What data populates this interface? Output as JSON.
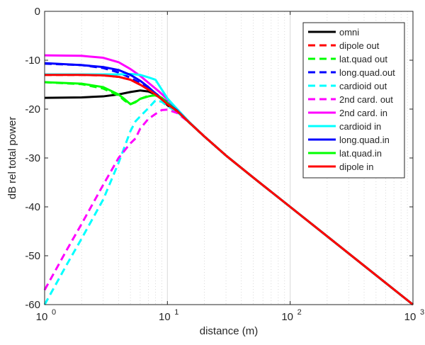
{
  "chart_data": {
    "type": "line",
    "title": "",
    "xlabel": "distance (m)",
    "ylabel": "dB rel total power",
    "xscale": "log",
    "xlim": [
      1,
      1000
    ],
    "ylim": [
      -60,
      0
    ],
    "grid": "x-major-minor",
    "legend_position": "top-right",
    "xticks": [
      {
        "value": 1,
        "base": "10",
        "exp": "0"
      },
      {
        "value": 10,
        "base": "10",
        "exp": "1"
      },
      {
        "value": 100,
        "base": "10",
        "exp": "2"
      },
      {
        "value": 1000,
        "base": "10",
        "exp": "3"
      }
    ],
    "yticks": [
      {
        "value": 0,
        "label": "0"
      },
      {
        "value": -10,
        "label": "-10"
      },
      {
        "value": -20,
        "label": "-20"
      },
      {
        "value": -30,
        "label": "-30"
      },
      {
        "value": -40,
        "label": "-40"
      },
      {
        "value": -50,
        "label": "-50"
      },
      {
        "value": -60,
        "label": "-60"
      }
    ],
    "series": [
      {
        "name": "omni",
        "color": "#000000",
        "dashed": false,
        "points": [
          [
            1,
            -17.7
          ],
          [
            2,
            -17.6
          ],
          [
            3,
            -17.4
          ],
          [
            4,
            -17.0
          ],
          [
            5,
            -16.5
          ],
          [
            6,
            -16.2
          ],
          [
            7,
            -16.4
          ],
          [
            8,
            -17.0
          ],
          [
            9,
            -18.0
          ],
          [
            10,
            -19.2
          ],
          [
            12,
            -20.5
          ],
          [
            15,
            -22.7
          ],
          [
            20,
            -25.6
          ],
          [
            30,
            -29.5
          ],
          [
            50,
            -34.0
          ],
          [
            100,
            -40.0
          ],
          [
            200,
            -46.0
          ],
          [
            500,
            -54.0
          ],
          [
            1000,
            -60.0
          ]
        ]
      },
      {
        "name": "dipole out",
        "color": "#ff0000",
        "dashed": true,
        "points": [
          [
            1,
            -13.0
          ],
          [
            2,
            -13.0
          ],
          [
            3,
            -13.1
          ],
          [
            4,
            -13.4
          ],
          [
            5,
            -14.0
          ],
          [
            6,
            -15.0
          ],
          [
            7,
            -16.0
          ],
          [
            8,
            -17.0
          ],
          [
            9,
            -18.0
          ],
          [
            10,
            -19.0
          ],
          [
            12,
            -20.4
          ],
          [
            15,
            -22.7
          ],
          [
            20,
            -25.6
          ],
          [
            30,
            -29.5
          ],
          [
            50,
            -34.0
          ],
          [
            100,
            -40.0
          ],
          [
            200,
            -46.0
          ],
          [
            500,
            -54.0
          ],
          [
            1000,
            -60.0
          ]
        ]
      },
      {
        "name": "lat.quad out",
        "color": "#00ff00",
        "dashed": true,
        "points": [
          [
            1,
            -14.5
          ],
          [
            2,
            -14.9
          ],
          [
            3,
            -15.8
          ],
          [
            4,
            -17.2
          ],
          [
            4.5,
            -18.3
          ],
          [
            5,
            -19.0
          ],
          [
            5.5,
            -18.5
          ],
          [
            6,
            -17.9
          ],
          [
            7,
            -17.3
          ],
          [
            8,
            -17.2
          ],
          [
            9,
            -17.8
          ],
          [
            10,
            -18.8
          ],
          [
            12,
            -20.4
          ],
          [
            15,
            -22.7
          ],
          [
            20,
            -25.6
          ],
          [
            30,
            -29.5
          ],
          [
            50,
            -34.0
          ],
          [
            100,
            -40.0
          ],
          [
            1000,
            -60.0
          ]
        ]
      },
      {
        "name": "long.quad.out",
        "color": "#0000ff",
        "dashed": true,
        "points": [
          [
            1,
            -10.7
          ],
          [
            2,
            -11.0
          ],
          [
            3,
            -11.6
          ],
          [
            4,
            -12.5
          ],
          [
            5,
            -13.6
          ],
          [
            6,
            -14.7
          ],
          [
            7,
            -15.8
          ],
          [
            8,
            -16.8
          ],
          [
            9,
            -17.7
          ],
          [
            10,
            -18.6
          ],
          [
            12,
            -20.3
          ],
          [
            15,
            -22.7
          ],
          [
            20,
            -25.6
          ],
          [
            30,
            -29.5
          ],
          [
            50,
            -34.0
          ],
          [
            100,
            -40.0
          ],
          [
            1000,
            -60.0
          ]
        ]
      },
      {
        "name": "cardioid out",
        "color": "#00ffff",
        "dashed": true,
        "points": [
          [
            1,
            -60.0
          ],
          [
            1.5,
            -52.0
          ],
          [
            2,
            -46.5
          ],
          [
            3,
            -38.5
          ],
          [
            4,
            -31.0
          ],
          [
            5,
            -24.5
          ],
          [
            5.5,
            -22.5
          ],
          [
            6,
            -21.5
          ],
          [
            7,
            -19.8
          ],
          [
            8,
            -18.2
          ],
          [
            9,
            -18.5
          ],
          [
            10,
            -19.4
          ],
          [
            12,
            -20.6
          ],
          [
            15,
            -22.7
          ],
          [
            20,
            -25.6
          ],
          [
            30,
            -29.5
          ],
          [
            50,
            -34.0
          ],
          [
            100,
            -40.0
          ],
          [
            1000,
            -60.0
          ]
        ]
      },
      {
        "name": "2nd card. out",
        "color": "#ff00ff",
        "dashed": true,
        "points": [
          [
            1,
            -57.0
          ],
          [
            1.5,
            -49.0
          ],
          [
            2,
            -43.5
          ],
          [
            3,
            -35.5
          ],
          [
            4,
            -30.0
          ],
          [
            5,
            -27.0
          ],
          [
            5.5,
            -26.0
          ],
          [
            6,
            -24.0
          ],
          [
            7,
            -22.0
          ],
          [
            8,
            -21.0
          ],
          [
            9,
            -20.2
          ],
          [
            10,
            -20.1
          ],
          [
            12,
            -20.8
          ],
          [
            15,
            -22.7
          ],
          [
            20,
            -25.6
          ],
          [
            30,
            -29.5
          ],
          [
            50,
            -34.0
          ],
          [
            100,
            -40.0
          ],
          [
            1000,
            -60.0
          ]
        ]
      },
      {
        "name": "2nd card. in",
        "color": "#ff00ff",
        "dashed": false,
        "points": [
          [
            1,
            -9.0
          ],
          [
            2,
            -9.1
          ],
          [
            3,
            -9.5
          ],
          [
            4,
            -10.4
          ],
          [
            5,
            -11.8
          ],
          [
            6,
            -13.2
          ],
          [
            7,
            -14.6
          ],
          [
            8,
            -15.8
          ],
          [
            9,
            -16.9
          ],
          [
            10,
            -18.0
          ],
          [
            12,
            -20.0
          ],
          [
            15,
            -22.6
          ],
          [
            20,
            -25.6
          ],
          [
            30,
            -29.5
          ],
          [
            50,
            -34.0
          ],
          [
            100,
            -40.0
          ],
          [
            1000,
            -60.0
          ]
        ]
      },
      {
        "name": "cardioid in",
        "color": "#00ffff",
        "dashed": false,
        "points": [
          [
            1,
            -12.9
          ],
          [
            2,
            -12.9
          ],
          [
            3,
            -12.9
          ],
          [
            4,
            -12.9
          ],
          [
            5,
            -12.8
          ],
          [
            6,
            -13.0
          ],
          [
            7,
            -13.5
          ],
          [
            8,
            -14.0
          ],
          [
            9,
            -16.0
          ],
          [
            10,
            -17.8
          ],
          [
            12,
            -20.0
          ],
          [
            15,
            -22.6
          ],
          [
            20,
            -25.6
          ],
          [
            30,
            -29.5
          ],
          [
            50,
            -34.0
          ],
          [
            100,
            -40.0
          ],
          [
            1000,
            -60.0
          ]
        ]
      },
      {
        "name": "long.quad.in",
        "color": "#0000ff",
        "dashed": false,
        "points": [
          [
            1,
            -10.6
          ],
          [
            2,
            -11.0
          ],
          [
            3,
            -11.4
          ],
          [
            4,
            -12.0
          ],
          [
            5,
            -13.0
          ],
          [
            6,
            -14.2
          ],
          [
            7,
            -15.5
          ],
          [
            8,
            -16.8
          ],
          [
            9,
            -17.8
          ],
          [
            10,
            -18.7
          ],
          [
            12,
            -20.3
          ],
          [
            15,
            -22.7
          ],
          [
            20,
            -25.6
          ],
          [
            30,
            -29.5
          ],
          [
            50,
            -34.0
          ],
          [
            100,
            -40.0
          ],
          [
            1000,
            -60.0
          ]
        ]
      },
      {
        "name": "lat.quad.in",
        "color": "#00ff00",
        "dashed": false,
        "points": [
          [
            1,
            -14.5
          ],
          [
            2,
            -14.8
          ],
          [
            3,
            -15.5
          ],
          [
            4,
            -17.0
          ],
          [
            4.5,
            -18.0
          ],
          [
            5,
            -19.0
          ],
          [
            5.5,
            -18.6
          ],
          [
            6,
            -17.9
          ],
          [
            7,
            -17.4
          ],
          [
            8,
            -17.1
          ],
          [
            9,
            -17.7
          ],
          [
            10,
            -18.8
          ],
          [
            12,
            -20.4
          ],
          [
            15,
            -22.7
          ],
          [
            20,
            -25.6
          ],
          [
            30,
            -29.5
          ],
          [
            50,
            -34.0
          ],
          [
            100,
            -40.0
          ],
          [
            1000,
            -60.0
          ]
        ]
      },
      {
        "name": "dipole in",
        "color": "#ff0000",
        "dashed": false,
        "points": [
          [
            1,
            -13.0
          ],
          [
            2,
            -13.0
          ],
          [
            3,
            -13.1
          ],
          [
            4,
            -13.4
          ],
          [
            5,
            -14.0
          ],
          [
            6,
            -15.0
          ],
          [
            7,
            -16.0
          ],
          [
            8,
            -17.0
          ],
          [
            9,
            -18.0
          ],
          [
            10,
            -19.0
          ],
          [
            12,
            -20.4
          ],
          [
            15,
            -22.7
          ],
          [
            20,
            -25.6
          ],
          [
            30,
            -29.5
          ],
          [
            50,
            -34.0
          ],
          [
            100,
            -40.0
          ],
          [
            1000,
            -60.0
          ]
        ]
      }
    ]
  }
}
